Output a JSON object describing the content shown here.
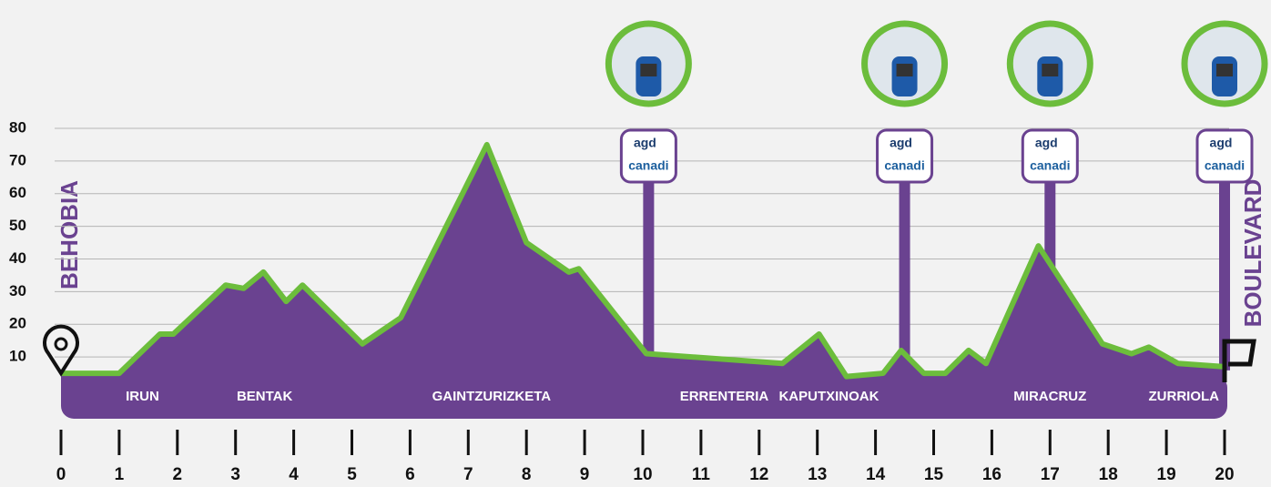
{
  "chart_data": {
    "type": "area",
    "start_label": "BEHOBIA",
    "finish_label": "BOULEVARD",
    "x": [
      0,
      1,
      1.7,
      1.93,
      2.83,
      3.14,
      3.48,
      3.87,
      4.15,
      5.18,
      5.84,
      7.32,
      8.0,
      8.73,
      8.9,
      10.06,
      12.4,
      13.03,
      13.5,
      14.13,
      14.44,
      14.83,
      15.2,
      15.6,
      15.9,
      16.8,
      17.9,
      18.4,
      18.7,
      19.2,
      20
    ],
    "values": [
      5,
      5,
      17,
      17,
      32,
      31,
      36,
      27,
      32,
      14,
      22,
      75,
      45,
      36,
      37,
      11,
      8,
      17,
      4,
      5,
      12,
      5,
      5,
      12,
      8,
      44,
      14,
      11,
      13,
      8,
      7
    ],
    "color": "#6a4290",
    "line_color": "#6cbd3c",
    "xlim": [
      0,
      20
    ],
    "xticks": [
      0,
      1,
      2,
      3,
      4,
      5,
      6,
      7,
      8,
      9,
      10,
      11,
      12,
      13,
      14,
      15,
      16,
      17,
      18,
      19,
      20
    ],
    "ylim": [
      0,
      80
    ],
    "yticks": [
      10,
      20,
      30,
      40,
      50,
      60,
      70,
      80
    ],
    "grid": true,
    "places": [
      {
        "name": "IRUN",
        "km": 1.4
      },
      {
        "name": "BENTAK",
        "km": 3.5
      },
      {
        "name": "GAINTZURIZKETA",
        "km": 7.4
      },
      {
        "name": "ERRENTERIA",
        "km": 11.4
      },
      {
        "name": "KAPUTXINOAK",
        "km": 13.2
      },
      {
        "name": "MIRACRUZ",
        "km": 17.0
      },
      {
        "name": "ZURRIOLA",
        "km": 19.3
      }
    ],
    "stations": [
      10.1,
      14.5,
      17.0,
      20.0
    ],
    "logo_top": "agd",
    "logo_bottom": "canadi"
  }
}
